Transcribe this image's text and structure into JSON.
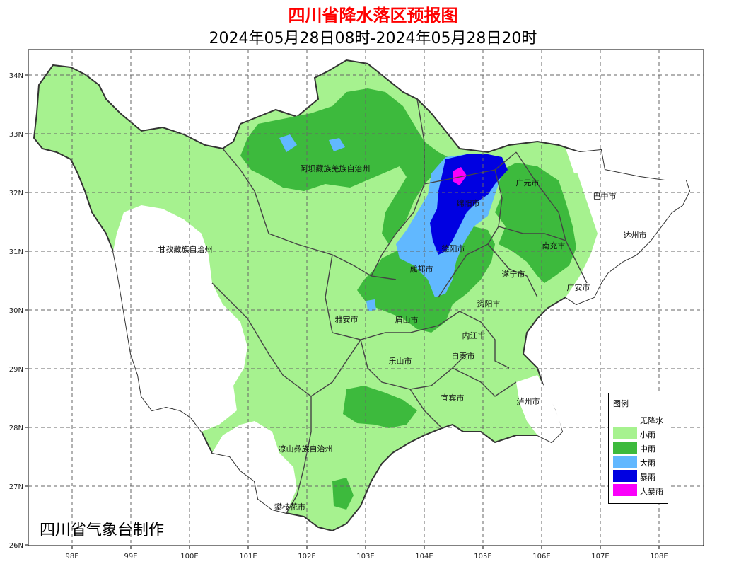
{
  "title": "四川省降水落区预报图",
  "subtitle": "2024年05月28日08时-2024年05月28日20时",
  "credit": "四川省气象台制作",
  "axes": {
    "x_ticks": [
      "98E",
      "99E",
      "100E",
      "101E",
      "102E",
      "103E",
      "104E",
      "105E",
      "106E",
      "107E",
      "108E"
    ],
    "y_ticks": [
      "34N",
      "33N",
      "32N",
      "31N",
      "30N",
      "29N",
      "28N",
      "27N",
      "26N"
    ]
  },
  "legend": {
    "title": "图例",
    "items": [
      {
        "label": "无降水",
        "color": "#ffffff"
      },
      {
        "label": "小雨",
        "color": "#a6f28f"
      },
      {
        "label": "中雨",
        "color": "#3dba3d"
      },
      {
        "label": "大雨",
        "color": "#61b8ff"
      },
      {
        "label": "暴雨",
        "color": "#0000e1"
      },
      {
        "label": "大暴雨",
        "color": "#fa00fa"
      }
    ]
  },
  "cities": [
    "阿坝藏族羌族自治州",
    "广元市",
    "巴中市",
    "绵阳市",
    "达州市",
    "甘孜藏族自治州",
    "德阳市",
    "南充市",
    "成都市",
    "遂宁市",
    "广安市",
    "资阳市",
    "雅安市",
    "眉山市",
    "内江市",
    "自贡市",
    "乐山市",
    "宜宾市",
    "泸州市",
    "凉山彝族自治州",
    "攀枝花市"
  ],
  "colors": {
    "no_rain": "#ffffff",
    "light": "#a6f28f",
    "moderate": "#3dba3d",
    "heavy": "#61b8ff",
    "rainstorm": "#0000e1",
    "heavy_rainstorm": "#fa00fa",
    "boundary": "#333333",
    "grid": "#666666"
  }
}
